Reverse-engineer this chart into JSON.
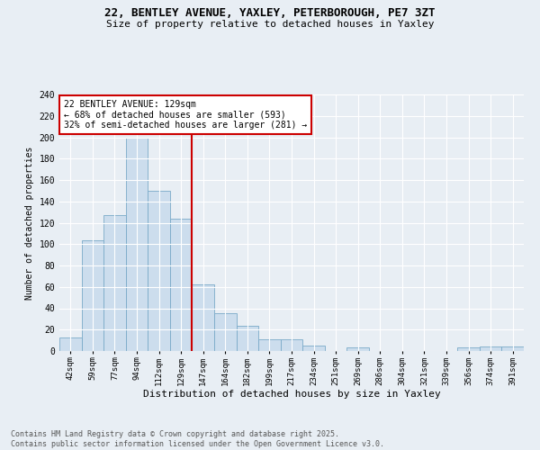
{
  "title1": "22, BENTLEY AVENUE, YAXLEY, PETERBOROUGH, PE7 3ZT",
  "title2": "Size of property relative to detached houses in Yaxley",
  "xlabel": "Distribution of detached houses by size in Yaxley",
  "ylabel": "Number of detached properties",
  "categories": [
    "42sqm",
    "59sqm",
    "77sqm",
    "94sqm",
    "112sqm",
    "129sqm",
    "147sqm",
    "164sqm",
    "182sqm",
    "199sqm",
    "217sqm",
    "234sqm",
    "251sqm",
    "269sqm",
    "286sqm",
    "304sqm",
    "321sqm",
    "339sqm",
    "356sqm",
    "374sqm",
    "391sqm"
  ],
  "values": [
    13,
    104,
    127,
    200,
    150,
    124,
    62,
    35,
    24,
    11,
    11,
    5,
    0,
    3,
    0,
    0,
    0,
    0,
    3,
    4,
    4
  ],
  "bar_color": "#ccdded",
  "bar_edge_color": "#7aaac8",
  "vline_index": 5,
  "vline_color": "#cc0000",
  "annotation_text": "22 BENTLEY AVENUE: 129sqm\n← 68% of detached houses are smaller (593)\n32% of semi-detached houses are larger (281) →",
  "annotation_box_color": "#ffffff",
  "annotation_box_edge": "#cc0000",
  "ylim": [
    0,
    240
  ],
  "yticks": [
    0,
    20,
    40,
    60,
    80,
    100,
    120,
    140,
    160,
    180,
    200,
    220,
    240
  ],
  "background_color": "#e8eef4",
  "grid_color": "#ffffff",
  "footer": "Contains HM Land Registry data © Crown copyright and database right 2025.\nContains public sector information licensed under the Open Government Licence v3.0."
}
